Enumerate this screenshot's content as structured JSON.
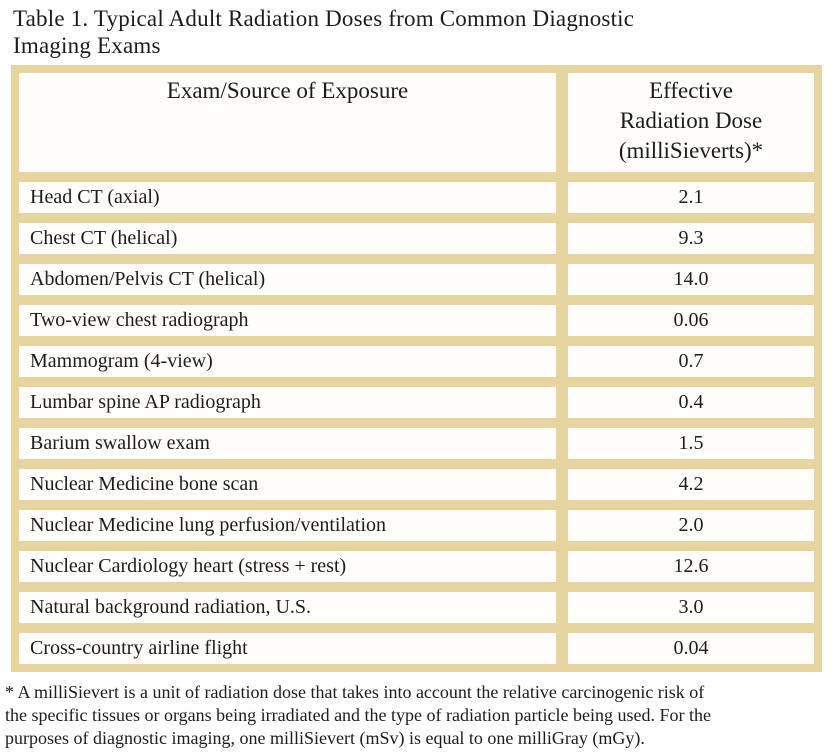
{
  "title": {
    "line1": "Table 1. Typical Adult Radiation Doses from Common Diagnostic",
    "line2": "Imaging Exams"
  },
  "table": {
    "header": {
      "exam_col": "Exam/Source of Exposure",
      "dose_col_line1": "Effective",
      "dose_col_line2": "Radiation Dose",
      "dose_col_line3": "(milliSieverts)*"
    },
    "rows": [
      {
        "exam": "Head CT (axial)",
        "dose": "2.1"
      },
      {
        "exam": "Chest CT (helical)",
        "dose": "9.3"
      },
      {
        "exam": "Abdomen/Pelvis CT (helical)",
        "dose": "14.0"
      },
      {
        "exam": "Two-view chest radiograph",
        "dose": "0.06"
      },
      {
        "exam": "Mammogram (4-view)",
        "dose": "0.7"
      },
      {
        "exam": "Lumbar spine AP radiograph",
        "dose": "0.4"
      },
      {
        "exam": "Barium swallow exam",
        "dose": "1.5"
      },
      {
        "exam": "Nuclear Medicine bone scan",
        "dose": "4.2"
      },
      {
        "exam": "Nuclear Medicine lung perfusion/ventilation",
        "dose": "2.0"
      },
      {
        "exam": "Nuclear Cardiology heart (stress + rest)",
        "dose": "12.6"
      },
      {
        "exam": "Natural background radiation, U.S.",
        "dose": "3.0"
      },
      {
        "exam": "Cross-country airline flight",
        "dose": "0.04"
      }
    ]
  },
  "footnote": {
    "line1": "* A milliSievert is a unit of radiation dose that takes into account the relative carcinogenic risk of",
    "line2": "the specific tissues or organs being irradiated and the type of radiation particle being used. For the",
    "line3": "purposes of diagnostic imaging, one milliSievert (mSv) is equal to one milliGray (mGy)."
  },
  "colors": {
    "frame_tan": "#e6d5a1",
    "cell_white": "#fffefb",
    "text": "#1c1c1c"
  }
}
